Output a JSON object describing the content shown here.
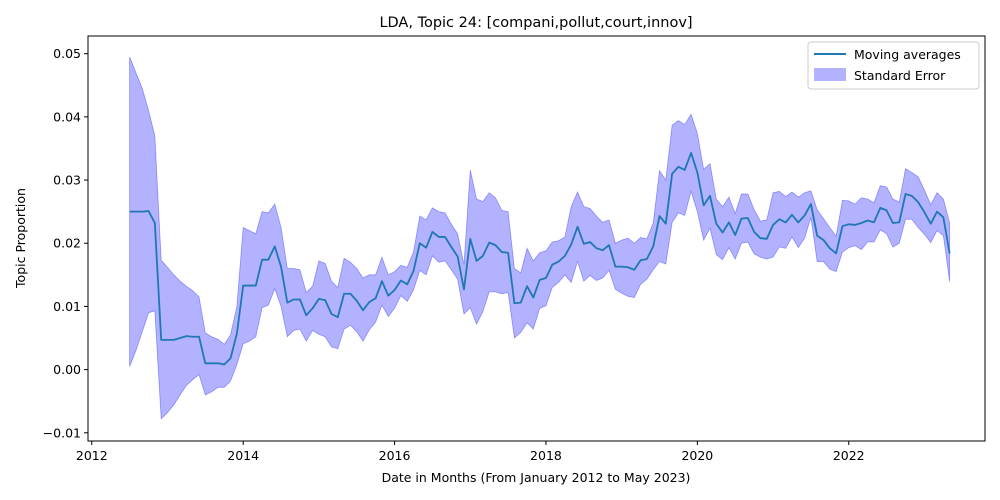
{
  "chart_data": {
    "type": "line",
    "title": "LDA, Topic 24: [compani,pollut,court,innov]",
    "xlabel": "Date in Months (From January 2012 to May 2023)",
    "ylabel": "Topic Proportion",
    "x_ticks": [
      2012,
      2014,
      2016,
      2018,
      2020,
      2022
    ],
    "x_tick_labels": [
      "2012",
      "2014",
      "2016",
      "2018",
      "2020",
      "2022"
    ],
    "y_ticks": [
      -0.01,
      0.0,
      0.01,
      0.02,
      0.03,
      0.04,
      0.05
    ],
    "y_tick_labels": [
      "−0.01",
      "0.00",
      "0.01",
      "0.02",
      "0.03",
      "0.04",
      "0.05"
    ],
    "xlim": [
      2011.95,
      2023.8
    ],
    "ylim": [
      -0.0113,
      0.0528
    ],
    "legend_position": "top-right",
    "colors": {
      "line": "#1f77b4",
      "band": "#0000ff",
      "band_edge": "#0000ff"
    },
    "series": [
      {
        "name": "Moving averages",
        "x": [
          2012.5,
          2012.583,
          2012.667,
          2012.75,
          2012.833,
          2012.917,
          2013.0,
          2013.083,
          2013.167,
          2013.25,
          2013.333,
          2013.417,
          2013.5,
          2013.583,
          2013.667,
          2013.75,
          2013.833,
          2013.917,
          2014.0,
          2014.083,
          2014.167,
          2014.25,
          2014.333,
          2014.417,
          2014.5,
          2014.583,
          2014.667,
          2014.75,
          2014.833,
          2014.917,
          2015.0,
          2015.083,
          2015.167,
          2015.25,
          2015.333,
          2015.417,
          2015.5,
          2015.583,
          2015.667,
          2015.75,
          2015.833,
          2015.917,
          2016.0,
          2016.083,
          2016.167,
          2016.25,
          2016.333,
          2016.417,
          2016.5,
          2016.583,
          2016.667,
          2016.75,
          2016.833,
          2016.917,
          2017.0,
          2017.083,
          2017.167,
          2017.25,
          2017.333,
          2017.417,
          2017.5,
          2017.583,
          2017.667,
          2017.75,
          2017.833,
          2017.917,
          2018.0,
          2018.083,
          2018.167,
          2018.25,
          2018.333,
          2018.417,
          2018.5,
          2018.583,
          2018.667,
          2018.75,
          2018.833,
          2018.917,
          2019.0,
          2019.083,
          2019.167,
          2019.25,
          2019.333,
          2019.417,
          2019.5,
          2019.583,
          2019.667,
          2019.75,
          2019.833,
          2019.917,
          2020.0,
          2020.083,
          2020.167,
          2020.25,
          2020.333,
          2020.417,
          2020.5,
          2020.583,
          2020.667,
          2020.75,
          2020.833,
          2020.917,
          2021.0,
          2021.083,
          2021.167,
          2021.25,
          2021.333,
          2021.417,
          2021.5,
          2021.583,
          2021.667,
          2021.75,
          2021.833,
          2021.917,
          2022.0,
          2022.083,
          2022.167,
          2022.25,
          2022.333,
          2022.417,
          2022.5,
          2022.583,
          2022.667,
          2022.75,
          2022.833,
          2022.917,
          2023.0,
          2023.083,
          2023.167,
          2023.25,
          2023.333
        ],
        "y": [
          0.025,
          0.025,
          0.025,
          0.0251,
          0.0232,
          0.0047,
          0.0047,
          0.0047,
          0.005,
          0.0053,
          0.0052,
          0.0052,
          0.001,
          0.001,
          0.001,
          0.0008,
          0.0018,
          0.0057,
          0.0133,
          0.0133,
          0.0133,
          0.0174,
          0.0174,
          0.0195,
          0.0163,
          0.0106,
          0.0111,
          0.0111,
          0.0086,
          0.0097,
          0.0112,
          0.011,
          0.0088,
          0.0083,
          0.012,
          0.012,
          0.0109,
          0.0094,
          0.0107,
          0.0113,
          0.014,
          0.0117,
          0.0126,
          0.0141,
          0.0135,
          0.0156,
          0.02,
          0.0193,
          0.0218,
          0.021,
          0.021,
          0.0194,
          0.0179,
          0.0127,
          0.0207,
          0.0172,
          0.018,
          0.0201,
          0.0197,
          0.0186,
          0.0185,
          0.0105,
          0.0106,
          0.0132,
          0.0114,
          0.0142,
          0.0145,
          0.0166,
          0.0171,
          0.018,
          0.0198,
          0.0226,
          0.0199,
          0.0202,
          0.0192,
          0.0189,
          0.0197,
          0.0163,
          0.0163,
          0.0162,
          0.0158,
          0.0173,
          0.0175,
          0.0195,
          0.0243,
          0.0231,
          0.031,
          0.0321,
          0.0316,
          0.0343,
          0.0312,
          0.026,
          0.0275,
          0.0231,
          0.0217,
          0.0233,
          0.0213,
          0.0239,
          0.024,
          0.0218,
          0.0208,
          0.0207,
          0.0229,
          0.0238,
          0.0233,
          0.0245,
          0.0233,
          0.0244,
          0.0262,
          0.0212,
          0.0205,
          0.0192,
          0.0184,
          0.0227,
          0.023,
          0.0229,
          0.0232,
          0.0236,
          0.0233,
          0.0256,
          0.0252,
          0.0232,
          0.0233,
          0.0278,
          0.0275,
          0.0265,
          0.0249,
          0.0231,
          0.025,
          0.0241,
          0.0184
        ]
      },
      {
        "name": "Standard Error",
        "x": [
          2012.5,
          2012.583,
          2012.667,
          2012.75,
          2012.833,
          2012.917,
          2013.0,
          2013.083,
          2013.167,
          2013.25,
          2013.333,
          2013.417,
          2013.5,
          2013.583,
          2013.667,
          2013.75,
          2013.833,
          2013.917,
          2014.0,
          2014.083,
          2014.167,
          2014.25,
          2014.333,
          2014.417,
          2014.5,
          2014.583,
          2014.667,
          2014.75,
          2014.833,
          2014.917,
          2015.0,
          2015.083,
          2015.167,
          2015.25,
          2015.333,
          2015.417,
          2015.5,
          2015.583,
          2015.667,
          2015.75,
          2015.833,
          2015.917,
          2016.0,
          2016.083,
          2016.167,
          2016.25,
          2016.333,
          2016.417,
          2016.5,
          2016.583,
          2016.667,
          2016.75,
          2016.833,
          2016.917,
          2017.0,
          2017.083,
          2017.167,
          2017.25,
          2017.333,
          2017.417,
          2017.5,
          2017.583,
          2017.667,
          2017.75,
          2017.833,
          2017.917,
          2018.0,
          2018.083,
          2018.167,
          2018.25,
          2018.333,
          2018.417,
          2018.5,
          2018.583,
          2018.667,
          2018.75,
          2018.833,
          2018.917,
          2019.0,
          2019.083,
          2019.167,
          2019.25,
          2019.333,
          2019.417,
          2019.5,
          2019.583,
          2019.667,
          2019.75,
          2019.833,
          2019.917,
          2020.0,
          2020.083,
          2020.167,
          2020.25,
          2020.333,
          2020.417,
          2020.5,
          2020.583,
          2020.667,
          2020.75,
          2020.833,
          2020.917,
          2021.0,
          2021.083,
          2021.167,
          2021.25,
          2021.333,
          2021.417,
          2021.5,
          2021.583,
          2021.667,
          2021.75,
          2021.833,
          2021.917,
          2022.0,
          2022.083,
          2022.167,
          2022.25,
          2022.333,
          2022.417,
          2022.5,
          2022.583,
          2022.667,
          2022.75,
          2022.833,
          2022.917,
          2023.0,
          2023.083,
          2023.167,
          2023.25,
          2023.333
        ],
        "upper": [
          0.0495,
          0.047,
          0.0445,
          0.041,
          0.037,
          0.0173,
          0.0162,
          0.015,
          0.014,
          0.0132,
          0.0125,
          0.0115,
          0.0058,
          0.0052,
          0.0048,
          0.004,
          0.0055,
          0.01,
          0.0225,
          0.022,
          0.0215,
          0.025,
          0.0248,
          0.0262,
          0.0225,
          0.016,
          0.016,
          0.0158,
          0.0122,
          0.0132,
          0.0172,
          0.0168,
          0.014,
          0.013,
          0.0176,
          0.017,
          0.016,
          0.0145,
          0.015,
          0.015,
          0.0178,
          0.015,
          0.0155,
          0.0165,
          0.0162,
          0.0186,
          0.0243,
          0.0237,
          0.0256,
          0.025,
          0.0248,
          0.023,
          0.0215,
          0.0166,
          0.0316,
          0.027,
          0.0266,
          0.028,
          0.0272,
          0.0252,
          0.025,
          0.016,
          0.0153,
          0.0192,
          0.0172,
          0.0185,
          0.0188,
          0.0202,
          0.0204,
          0.021,
          0.0258,
          0.0281,
          0.0258,
          0.0255,
          0.0243,
          0.0233,
          0.0237,
          0.02,
          0.0205,
          0.0208,
          0.02,
          0.0209,
          0.0207,
          0.0232,
          0.0315,
          0.03,
          0.0387,
          0.0394,
          0.0388,
          0.0404,
          0.0374,
          0.0317,
          0.0326,
          0.027,
          0.0258,
          0.0273,
          0.0247,
          0.0278,
          0.0278,
          0.0253,
          0.0235,
          0.0237,
          0.028,
          0.0282,
          0.0274,
          0.0281,
          0.0273,
          0.028,
          0.0283,
          0.0253,
          0.0239,
          0.0225,
          0.0211,
          0.0268,
          0.0267,
          0.0262,
          0.0272,
          0.027,
          0.0264,
          0.0291,
          0.0289,
          0.027,
          0.0265,
          0.0318,
          0.0312,
          0.0305,
          0.0284,
          0.0261,
          0.028,
          0.027,
          0.0232
        ],
        "lower": [
          0.0005,
          0.003,
          0.006,
          0.009,
          0.0093,
          -0.0078,
          -0.0068,
          -0.0056,
          -0.004,
          -0.0025,
          -0.0016,
          -0.0008,
          -0.004,
          -0.0035,
          -0.0028,
          -0.0028,
          -0.0018,
          0.0008,
          0.0041,
          0.0045,
          0.0052,
          0.0098,
          0.0102,
          0.0128,
          0.01,
          0.0052,
          0.0062,
          0.0064,
          0.0045,
          0.0062,
          0.0056,
          0.0052,
          0.0036,
          0.0033,
          0.0064,
          0.007,
          0.006,
          0.0045,
          0.0063,
          0.0075,
          0.0102,
          0.0084,
          0.0097,
          0.0117,
          0.0108,
          0.0126,
          0.0157,
          0.015,
          0.018,
          0.017,
          0.0172,
          0.0158,
          0.0143,
          0.0088,
          0.0098,
          0.0072,
          0.0092,
          0.0123,
          0.0123,
          0.012,
          0.0122,
          0.005,
          0.0059,
          0.0074,
          0.0064,
          0.0097,
          0.0101,
          0.013,
          0.0138,
          0.015,
          0.0138,
          0.0171,
          0.014,
          0.0149,
          0.0141,
          0.0145,
          0.0157,
          0.0127,
          0.0121,
          0.0116,
          0.0114,
          0.0135,
          0.0143,
          0.0158,
          0.0171,
          0.0167,
          0.0233,
          0.0248,
          0.0244,
          0.0282,
          0.025,
          0.0205,
          0.0224,
          0.0182,
          0.0174,
          0.0193,
          0.0175,
          0.02,
          0.0202,
          0.0183,
          0.0178,
          0.0175,
          0.0178,
          0.0194,
          0.0192,
          0.021,
          0.0193,
          0.0208,
          0.0241,
          0.0171,
          0.0171,
          0.0159,
          0.0155,
          0.0186,
          0.0193,
          0.0196,
          0.019,
          0.0202,
          0.0202,
          0.0221,
          0.0215,
          0.0194,
          0.02,
          0.0238,
          0.0238,
          0.0225,
          0.0214,
          0.0201,
          0.022,
          0.0212,
          0.0139
        ]
      }
    ]
  }
}
